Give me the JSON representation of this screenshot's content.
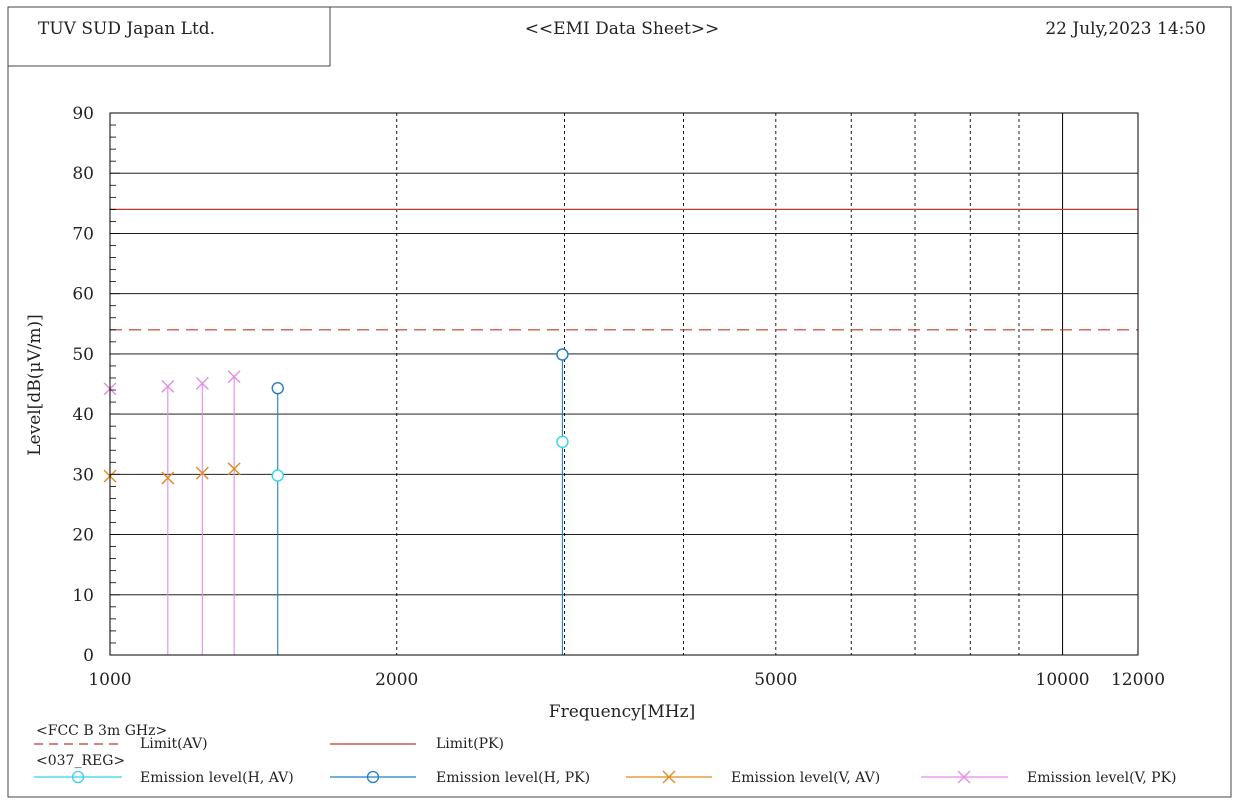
{
  "header": {
    "company": "TUV SUD Japan Ltd.",
    "title": "<<EMI Data Sheet>>",
    "datetime": "22 July,2023 14:50"
  },
  "legend": {
    "standard_title": "<FCC B 3m GHz>",
    "limit_av_label": "Limit(AV)",
    "limit_pk_label": "Limit(PK)",
    "project_title": "<037_REG>",
    "h_av_label": "Emission level(H, AV)",
    "h_pk_label": "Emission level(H, PK)",
    "v_av_label": "Emission level(V, AV)",
    "v_pk_label": "Emission level(V, PK)"
  },
  "colors": {
    "limit": "#c0392b",
    "h_av": "#33d6e6",
    "h_pk": "#1f7fc4",
    "v_av": "#e08a1a",
    "v_pk": "#e48ce8",
    "grid": "#000000"
  },
  "chart_data": {
    "type": "scatter",
    "xlabel": "Frequency[MHz]",
    "ylabel": "Level[dB(μV/m)]",
    "x_scale": "log",
    "xlim": [
      1000,
      12000
    ],
    "ylim": [
      0,
      90
    ],
    "x_tick_labels": [
      {
        "value": 1000,
        "label": "1000"
      },
      {
        "value": 2000,
        "label": "2000"
      },
      {
        "value": 5000,
        "label": "5000"
      },
      {
        "value": 10000,
        "label": "10000"
      },
      {
        "value": 12000,
        "label": "12000"
      }
    ],
    "x_grid_dashed": [
      2000,
      3000,
      4000,
      5000,
      6000,
      7000,
      8000,
      9000
    ],
    "x_grid_solid": [
      10000
    ],
    "y_ticks": [
      0,
      10,
      20,
      30,
      40,
      50,
      60,
      70,
      80,
      90
    ],
    "limits": [
      {
        "name": "Limit(AV)",
        "value": 54,
        "style": "dashed"
      },
      {
        "name": "Limit(PK)",
        "value": 74,
        "style": "solid"
      }
    ],
    "series": [
      {
        "name": "Emission level(H, AV)",
        "marker": "circle",
        "color_key": "h_av",
        "points": [
          [
            1500,
            29.8
          ],
          [
            2985,
            35.4
          ]
        ]
      },
      {
        "name": "Emission level(H, PK)",
        "marker": "circle",
        "color_key": "h_pk",
        "stems": true,
        "points": [
          [
            1500,
            44.3
          ],
          [
            2985,
            49.9
          ]
        ]
      },
      {
        "name": "Emission level(V, AV)",
        "marker": "x",
        "color_key": "v_av",
        "points": [
          [
            1000,
            29.7
          ],
          [
            1150,
            29.4
          ],
          [
            1250,
            30.2
          ],
          [
            1350,
            30.9
          ]
        ]
      },
      {
        "name": "Emission level(V, PK)",
        "marker": "x",
        "color_key": "v_pk",
        "stems": true,
        "points": [
          [
            1000,
            44.2
          ],
          [
            1150,
            44.6
          ],
          [
            1250,
            45.1
          ],
          [
            1350,
            46.2
          ]
        ]
      }
    ]
  }
}
